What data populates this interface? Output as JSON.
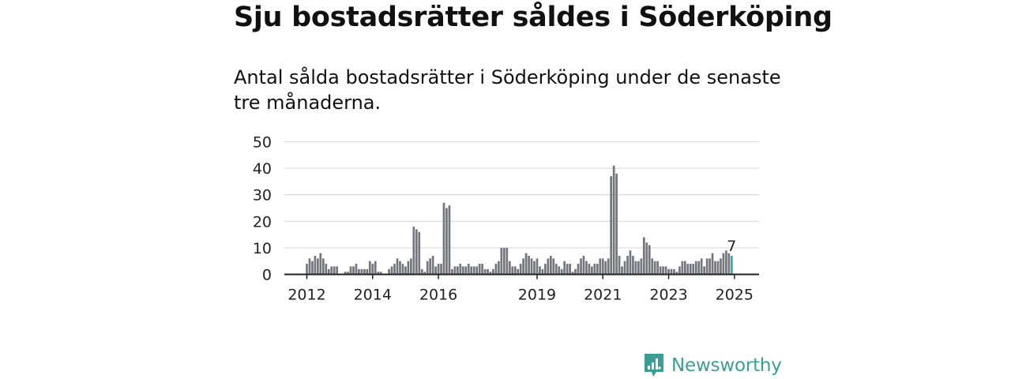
{
  "title": "Sju bostadsrätter såldes i Söderköping",
  "subtitle": "Antal sålda bostadsrätter i Söderköping under de senaste tre månaderna.",
  "brand": {
    "name": "Newsworthy",
    "color": "#3a9e95",
    "icon": "newsworthy-logo-icon"
  },
  "colors": {
    "bar": "#75757d",
    "highlight": "#2ab1a3",
    "grid": "#dddddd",
    "axis": "#222222"
  },
  "chart_data": {
    "type": "bar",
    "x_ticks": [
      "2012",
      "2014",
      "2016",
      "2019",
      "2021",
      "2023",
      "2025"
    ],
    "y_ticks": [
      "0",
      "10",
      "20",
      "30",
      "40",
      "50"
    ],
    "ylim": [
      0,
      50
    ],
    "grid": true,
    "highlight_label": "7",
    "values": [
      4,
      6,
      5,
      7,
      6,
      8,
      6,
      4,
      2,
      3,
      3,
      3,
      0,
      0,
      1,
      1,
      3,
      3,
      4,
      2,
      2,
      2,
      2,
      5,
      4,
      5,
      1,
      1,
      0,
      0,
      2,
      3,
      4,
      6,
      5,
      4,
      3,
      5,
      6,
      18,
      17,
      16,
      2,
      1,
      5,
      6,
      7,
      3,
      4,
      4,
      27,
      25,
      26,
      2,
      3,
      3,
      4,
      3,
      3,
      4,
      3,
      3,
      3,
      4,
      4,
      2,
      2,
      1,
      2,
      4,
      5,
      10,
      10,
      10,
      5,
      3,
      3,
      2,
      4,
      6,
      8,
      7,
      6,
      5,
      6,
      3,
      2,
      4,
      6,
      7,
      6,
      4,
      3,
      2,
      5,
      4,
      4,
      1,
      2,
      4,
      6,
      7,
      5,
      4,
      3,
      4,
      4,
      6,
      6,
      5,
      6,
      37,
      41,
      38,
      7,
      3,
      5,
      7,
      9,
      7,
      5,
      5,
      6,
      14,
      12,
      11,
      6,
      5,
      5,
      3,
      3,
      3,
      2,
      2,
      2,
      1,
      3,
      5,
      5,
      4,
      4,
      4,
      5,
      5,
      6,
      3,
      6,
      6,
      8,
      5,
      5,
      6,
      8,
      9,
      8,
      7
    ]
  }
}
